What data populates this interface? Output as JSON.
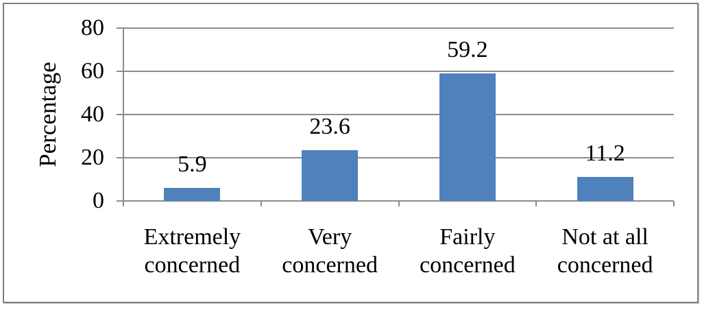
{
  "chart_data": {
    "type": "bar",
    "title": "",
    "xlabel": "",
    "ylabel": "Percentage",
    "categories": [
      "Extremely concerned",
      "Very concerned",
      "Fairly concerned",
      "Not at all concerned"
    ],
    "category_label_lines": [
      [
        "Extremely",
        "concerned"
      ],
      [
        "Very",
        "concerned"
      ],
      [
        "Fairly",
        "concerned"
      ],
      [
        "Not at all",
        "concerned"
      ]
    ],
    "values": [
      5.9,
      23.6,
      59.2,
      11.2
    ],
    "data_labels": [
      "5.9",
      "23.6",
      "59.2",
      "11.2"
    ],
    "ylim": [
      0,
      80
    ],
    "yticks": [
      0,
      20,
      40,
      60,
      80
    ],
    "grid": true,
    "legend": false,
    "colors": {
      "bar": "#4F81BD",
      "gridline": "#8C8C8C",
      "axis": "#8C8C8C",
      "frame_border": "#7F7F7F",
      "text": "#000000",
      "background": "#FFFFFF"
    }
  }
}
